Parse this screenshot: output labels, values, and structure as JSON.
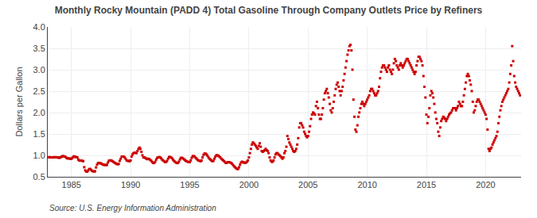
{
  "chart_data": {
    "type": "scatter",
    "title": "Monthly Rocky Mountain (PADD 4) Total Gasoline Through Company Outlets Price by Refiners",
    "ylabel": "Dollars per Gallon",
    "annotations": [
      "Source: U.S. Energy Information Administration"
    ],
    "color": "#cc0000",
    "marker": "square",
    "grid": true,
    "xlim": [
      1983.0,
      2023.0
    ],
    "ylim": [
      0.5,
      4.0
    ],
    "xticks": [
      1985,
      1990,
      1995,
      2000,
      2005,
      2010,
      2015,
      2020
    ],
    "yticks": [
      0.5,
      {
        "value": 1.0,
        "label": "1.0"
      },
      1.5,
      {
        "value": 2.0,
        "label": "2.0"
      },
      2.5,
      {
        "value": 3.0,
        "label": "3.0"
      },
      3.5,
      {
        "value": 4.0,
        "label": "4.0"
      }
    ],
    "x": [
      1983.083,
      1983.167,
      1983.25,
      1983.333,
      1983.417,
      1983.5,
      1983.583,
      1983.667,
      1983.75,
      1983.833,
      1983.917,
      1984.0,
      1984.083,
      1984.167,
      1984.25,
      1984.333,
      1984.417,
      1984.5,
      1984.583,
      1984.667,
      1984.75,
      1984.833,
      1984.917,
      1985.0,
      1985.083,
      1985.167,
      1985.25,
      1985.333,
      1985.417,
      1985.5,
      1985.583,
      1985.667,
      1985.75,
      1985.833,
      1985.917,
      1986.0,
      1986.083,
      1986.167,
      1986.25,
      1986.333,
      1986.417,
      1986.5,
      1986.583,
      1986.667,
      1986.75,
      1986.833,
      1986.917,
      1987.0,
      1987.083,
      1987.167,
      1987.25,
      1987.333,
      1987.417,
      1987.5,
      1987.583,
      1987.667,
      1987.75,
      1987.833,
      1987.917,
      1988.0,
      1988.083,
      1988.167,
      1988.25,
      1988.333,
      1988.417,
      1988.5,
      1988.583,
      1988.667,
      1988.75,
      1988.833,
      1988.917,
      1989.0,
      1989.083,
      1989.167,
      1989.25,
      1989.333,
      1989.417,
      1989.5,
      1989.583,
      1989.667,
      1989.75,
      1989.833,
      1989.917,
      1990.0,
      1990.083,
      1990.167,
      1990.25,
      1990.333,
      1990.417,
      1990.5,
      1990.583,
      1990.667,
      1990.75,
      1990.833,
      1990.917,
      1991.0,
      1991.083,
      1991.167,
      1991.25,
      1991.333,
      1991.417,
      1991.5,
      1991.583,
      1991.667,
      1991.75,
      1991.833,
      1991.917,
      1992.0,
      1992.083,
      1992.167,
      1992.25,
      1992.333,
      1992.417,
      1992.5,
      1992.583,
      1992.667,
      1992.75,
      1992.833,
      1992.917,
      1993.0,
      1993.083,
      1993.167,
      1993.25,
      1993.333,
      1993.417,
      1993.5,
      1993.583,
      1993.667,
      1993.75,
      1993.833,
      1993.917,
      1994.0,
      1994.083,
      1994.167,
      1994.25,
      1994.333,
      1994.417,
      1994.5,
      1994.583,
      1994.667,
      1994.75,
      1994.833,
      1994.917,
      1995.0,
      1995.083,
      1995.167,
      1995.25,
      1995.333,
      1995.417,
      1995.5,
      1995.583,
      1995.667,
      1995.75,
      1995.833,
      1995.917,
      1996.0,
      1996.083,
      1996.167,
      1996.25,
      1996.333,
      1996.417,
      1996.5,
      1996.583,
      1996.667,
      1996.75,
      1996.833,
      1996.917,
      1997.0,
      1997.083,
      1997.167,
      1997.25,
      1997.333,
      1997.417,
      1997.5,
      1997.583,
      1997.667,
      1997.75,
      1997.833,
      1997.917,
      1998.0,
      1998.083,
      1998.167,
      1998.25,
      1998.333,
      1998.417,
      1998.5,
      1998.583,
      1998.667,
      1998.75,
      1998.833,
      1998.917,
      1999.0,
      1999.083,
      1999.167,
      1999.25,
      1999.333,
      1999.417,
      1999.5,
      1999.583,
      1999.667,
      1999.75,
      1999.833,
      1999.917,
      2000.0,
      2000.083,
      2000.167,
      2000.25,
      2000.333,
      2000.417,
      2000.5,
      2000.583,
      2000.667,
      2000.75,
      2000.833,
      2000.917,
      2001.0,
      2001.083,
      2001.167,
      2001.25,
      2001.333,
      2001.417,
      2001.5,
      2001.583,
      2001.667,
      2001.75,
      2001.833,
      2001.917,
      2002.0,
      2002.083,
      2002.167,
      2002.25,
      2002.333,
      2002.417,
      2002.5,
      2002.583,
      2002.667,
      2002.75,
      2002.833,
      2002.917,
      2003.0,
      2003.083,
      2003.167,
      2003.25,
      2003.333,
      2003.417,
      2003.5,
      2003.583,
      2003.667,
      2003.75,
      2003.833,
      2003.917,
      2004.0,
      2004.083,
      2004.167,
      2004.25,
      2004.333,
      2004.417,
      2004.5,
      2004.583,
      2004.667,
      2004.75,
      2004.833,
      2004.917,
      2005.0,
      2005.083,
      2005.167,
      2005.25,
      2005.333,
      2005.417,
      2005.5,
      2005.583,
      2005.667,
      2005.75,
      2005.833,
      2005.917,
      2006.0,
      2006.083,
      2006.167,
      2006.25,
      2006.333,
      2006.417,
      2006.5,
      2006.583,
      2006.667,
      2006.75,
      2006.833,
      2006.917,
      2007.0,
      2007.083,
      2007.167,
      2007.25,
      2007.333,
      2007.417,
      2007.5,
      2007.583,
      2007.667,
      2007.75,
      2007.833,
      2007.917,
      2008.0,
      2008.083,
      2008.167,
      2008.25,
      2008.333,
      2008.417,
      2008.5,
      2008.583,
      2008.667,
      2008.75,
      2008.833,
      2008.917,
      2009.0,
      2009.083,
      2009.167,
      2009.25,
      2009.333,
      2009.417,
      2009.5,
      2009.583,
      2009.667,
      2009.75,
      2009.833,
      2009.917,
      2010.0,
      2010.083,
      2010.167,
      2010.25,
      2010.333,
      2010.417,
      2010.5,
      2010.583,
      2010.667,
      2010.75,
      2010.833,
      2010.917,
      2011.0,
      2011.083,
      2011.167,
      2011.25,
      2011.333,
      2011.417,
      2011.5,
      2011.583,
      2011.667,
      2011.75,
      2011.833,
      2011.917,
      2012.0,
      2012.083,
      2012.167,
      2012.25,
      2012.333,
      2012.417,
      2012.5,
      2012.583,
      2012.667,
      2012.75,
      2012.833,
      2012.917,
      2013.0,
      2013.083,
      2013.167,
      2013.25,
      2013.333,
      2013.417,
      2013.5,
      2013.583,
      2013.667,
      2013.75,
      2013.833,
      2013.917,
      2014.0,
      2014.083,
      2014.167,
      2014.25,
      2014.333,
      2014.417,
      2014.5,
      2014.583,
      2014.667,
      2014.75,
      2014.833,
      2014.917,
      2015.0,
      2015.083,
      2015.167,
      2015.25,
      2015.333,
      2015.417,
      2015.5,
      2015.583,
      2015.667,
      2015.75,
      2015.833,
      2015.917,
      2016.0,
      2016.083,
      2016.167,
      2016.25,
      2016.333,
      2016.417,
      2016.5,
      2016.583,
      2016.667,
      2016.75,
      2016.833,
      2016.917,
      2017.0,
      2017.083,
      2017.167,
      2017.25,
      2017.333,
      2017.417,
      2017.5,
      2017.583,
      2017.667,
      2017.75,
      2017.833,
      2017.917,
      2018.0,
      2018.083,
      2018.167,
      2018.25,
      2018.333,
      2018.417,
      2018.5,
      2018.583,
      2018.667,
      2018.75,
      2018.833,
      2018.917,
      2019.0,
      2019.083,
      2019.167,
      2019.25,
      2019.333,
      2019.417,
      2019.5,
      2019.583,
      2019.667,
      2019.75,
      2019.833,
      2019.917,
      2020.0,
      2020.083,
      2020.167,
      2020.25,
      2020.333,
      2020.417,
      2020.5,
      2020.583,
      2020.667,
      2020.75,
      2020.833,
      2020.917,
      2021.0,
      2021.083,
      2021.167,
      2021.25,
      2021.333,
      2021.417,
      2021.5,
      2021.583,
      2021.667,
      2021.75,
      2021.833,
      2021.917,
      2022.0,
      2022.083,
      2022.167,
      2022.25,
      2022.333,
      2022.417,
      2022.5,
      2022.583,
      2022.667,
      2022.75,
      2022.833,
      2022.917
    ],
    "values": [
      0.956,
      0.958,
      0.952,
      0.951,
      0.952,
      0.956,
      0.957,
      0.956,
      0.955,
      0.951,
      0.947,
      0.945,
      0.953,
      0.969,
      0.982,
      0.979,
      0.975,
      0.963,
      0.942,
      0.929,
      0.929,
      0.928,
      0.921,
      0.918,
      0.944,
      0.968,
      0.978,
      0.963,
      0.961,
      0.954,
      0.903,
      0.878,
      0.878,
      0.879,
      0.871,
      0.865,
      0.724,
      0.651,
      0.621,
      0.619,
      0.647,
      0.679,
      0.684,
      0.662,
      0.636,
      0.629,
      0.622,
      0.629,
      0.718,
      0.782,
      0.822,
      0.819,
      0.818,
      0.813,
      0.798,
      0.785,
      0.779,
      0.779,
      0.772,
      0.778,
      0.831,
      0.873,
      0.882,
      0.882,
      0.874,
      0.858,
      0.842,
      0.824,
      0.812,
      0.8,
      0.792,
      0.799,
      0.872,
      0.921,
      0.972,
      0.972,
      0.972,
      0.952,
      0.921,
      0.882,
      0.873,
      0.872,
      0.862,
      0.882,
      0.972,
      1.022,
      1.052,
      1.062,
      1.062,
      1.052,
      1.102,
      1.152,
      1.182,
      1.152,
      1.082,
      1.002,
      0.952,
      0.952,
      0.942,
      0.922,
      0.912,
      0.922,
      0.912,
      0.892,
      0.872,
      0.842,
      0.822,
      0.822,
      0.852,
      0.902,
      0.942,
      0.952,
      0.962,
      0.952,
      0.932,
      0.902,
      0.882,
      0.862,
      0.842,
      0.842,
      0.872,
      0.922,
      0.962,
      0.962,
      0.952,
      0.932,
      0.902,
      0.872,
      0.852,
      0.832,
      0.822,
      0.822,
      0.852,
      0.902,
      0.942,
      0.942,
      0.932,
      0.912,
      0.892,
      0.872,
      0.862,
      0.852,
      0.842,
      0.842,
      0.882,
      0.942,
      0.982,
      0.982,
      0.972,
      0.942,
      0.922,
      0.892,
      0.882,
      0.872,
      0.862,
      0.882,
      0.952,
      1.012,
      1.042,
      1.042,
      1.022,
      0.992,
      0.952,
      0.922,
      0.902,
      0.882,
      0.862,
      0.872,
      0.922,
      0.972,
      1.002,
      1.002,
      0.992,
      0.972,
      0.952,
      0.922,
      0.902,
      0.882,
      0.862,
      0.832,
      0.822,
      0.832,
      0.842,
      0.842,
      0.832,
      0.822,
      0.802,
      0.772,
      0.742,
      0.722,
      0.702,
      0.682,
      0.682,
      0.722,
      0.782,
      0.832,
      0.852,
      0.842,
      0.832,
      0.822,
      0.832,
      0.852,
      0.882,
      0.952,
      1.052,
      1.152,
      1.252,
      1.302,
      1.282,
      1.252,
      1.222,
      1.182,
      1.152,
      1.222,
      1.282,
      1.202,
      1.102,
      1.082,
      1.102,
      1.122,
      1.152,
      1.122,
      1.102,
      1.052,
      0.952,
      0.882,
      0.852,
      0.852,
      0.882,
      0.952,
      1.022,
      1.052,
      1.052,
      1.022,
      1.002,
      0.982,
      0.952,
      0.922,
      0.952,
      1.052,
      1.102,
      1.202,
      1.452,
      1.382,
      1.302,
      1.252,
      1.202,
      1.152,
      1.102,
      1.082,
      1.102,
      1.152,
      1.252,
      1.402,
      1.652,
      1.752,
      1.752,
      1.702,
      1.652,
      1.552,
      1.502,
      1.452,
      1.422,
      1.452,
      1.552,
      1.682,
      1.852,
      1.952,
      2.002,
      1.982,
      1.952,
      2.152,
      2.252,
      2.102,
      1.952,
      1.852,
      1.852,
      1.952,
      2.102,
      2.302,
      2.452,
      2.502,
      2.552,
      2.452,
      2.352,
      2.202,
      2.052,
      2.002,
      2.102,
      2.252,
      2.402,
      2.552,
      2.652,
      2.702,
      2.602,
      2.502,
      2.402,
      2.502,
      2.602,
      2.752,
      2.902,
      3.052,
      3.202,
      3.352,
      3.452,
      3.552,
      3.582,
      3.452,
      3.002,
      2.302,
      1.902,
      1.602,
      1.552,
      1.702,
      1.902,
      2.002,
      2.102,
      2.202,
      2.252,
      2.202,
      2.152,
      2.202,
      2.252,
      2.302,
      2.352,
      2.402,
      2.502,
      2.552,
      2.552,
      2.502,
      2.452,
      2.402,
      2.402,
      2.452,
      2.502,
      2.602,
      2.802,
      2.952,
      3.052,
      3.102,
      3.102,
      3.052,
      3.002,
      2.952,
      3.052,
      3.102,
      3.002,
      2.952,
      2.902,
      3.002,
      3.152,
      3.252,
      3.202,
      3.102,
      3.052,
      3.002,
      3.102,
      3.152,
      3.102,
      3.052,
      3.102,
      3.152,
      3.202,
      3.252,
      3.252,
      3.202,
      3.152,
      3.102,
      3.052,
      3.002,
      2.952,
      2.902,
      2.952,
      3.102,
      3.202,
      3.302,
      3.302,
      3.252,
      3.202,
      3.102,
      2.852,
      2.602,
      2.352,
      1.952,
      1.752,
      1.902,
      2.102,
      2.402,
      2.502,
      2.452,
      2.352,
      2.202,
      2.002,
      1.852,
      1.752,
      1.552,
      1.452,
      1.652,
      1.802,
      1.852,
      1.902,
      1.882,
      1.852,
      1.802,
      1.852,
      1.902,
      1.952,
      1.982,
      2.002,
      2.052,
      2.102,
      2.102,
      2.102,
      2.052,
      2.102,
      2.152,
      2.252,
      2.202,
      2.152,
      2.152,
      2.252,
      2.402,
      2.552,
      2.702,
      2.852,
      2.902,
      2.852,
      2.752,
      2.652,
      2.502,
      2.252,
      2.002,
      2.052,
      2.152,
      2.252,
      2.302,
      2.302,
      2.252,
      2.202,
      2.152,
      2.102,
      2.052,
      2.002,
      1.952,
      1.852,
      1.602,
      1.152,
      1.102,
      1.152,
      1.182,
      1.252,
      1.302,
      1.352,
      1.402,
      1.452,
      1.552,
      1.752,
      1.902,
      2.052,
      2.152,
      2.252,
      2.302,
      2.352,
      2.402,
      2.452,
      2.502,
      2.552,
      2.702,
      2.902,
      3.102,
      3.552,
      3.202,
      2.852,
      2.702,
      2.602,
      2.552,
      2.502,
      2.452,
      2.402
    ]
  }
}
